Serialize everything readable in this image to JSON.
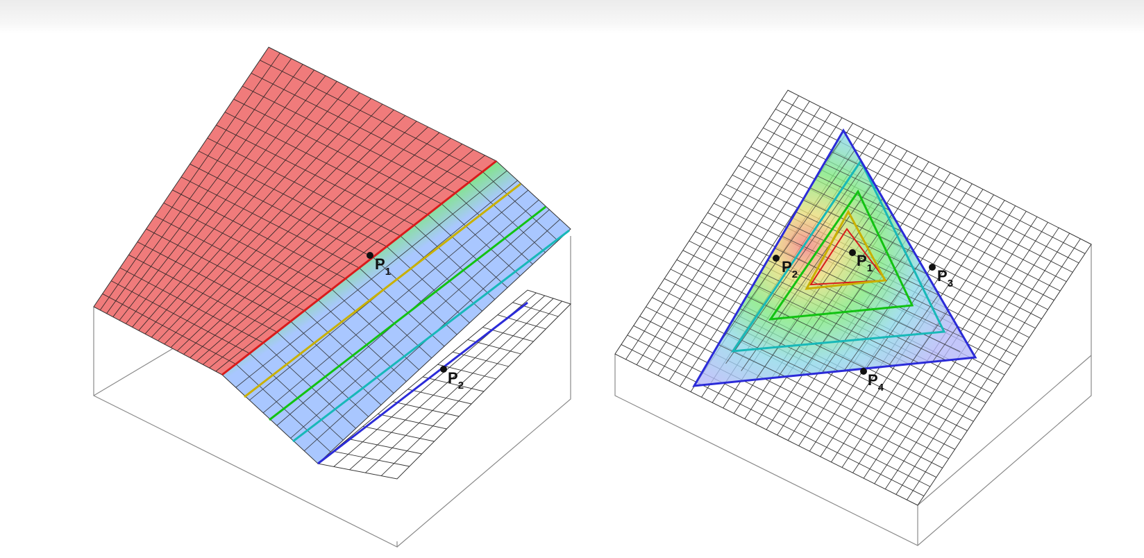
{
  "figures": [
    {
      "id": "left",
      "points": [
        {
          "name": "P",
          "sub": "1"
        },
        {
          "name": "P",
          "sub": "2"
        }
      ]
    },
    {
      "id": "right",
      "points": [
        {
          "name": "P",
          "sub": "1"
        },
        {
          "name": "P",
          "sub": "2"
        },
        {
          "name": "P",
          "sub": "3"
        },
        {
          "name": "P",
          "sub": "4"
        }
      ]
    }
  ],
  "colors": {
    "red": "#d81b1b",
    "yellow": "#c9b000",
    "green": "#12c212",
    "cyan": "#18b8b8",
    "blue": "#2b2bd8",
    "grid": "#333333",
    "box": "#8a8a8a"
  }
}
